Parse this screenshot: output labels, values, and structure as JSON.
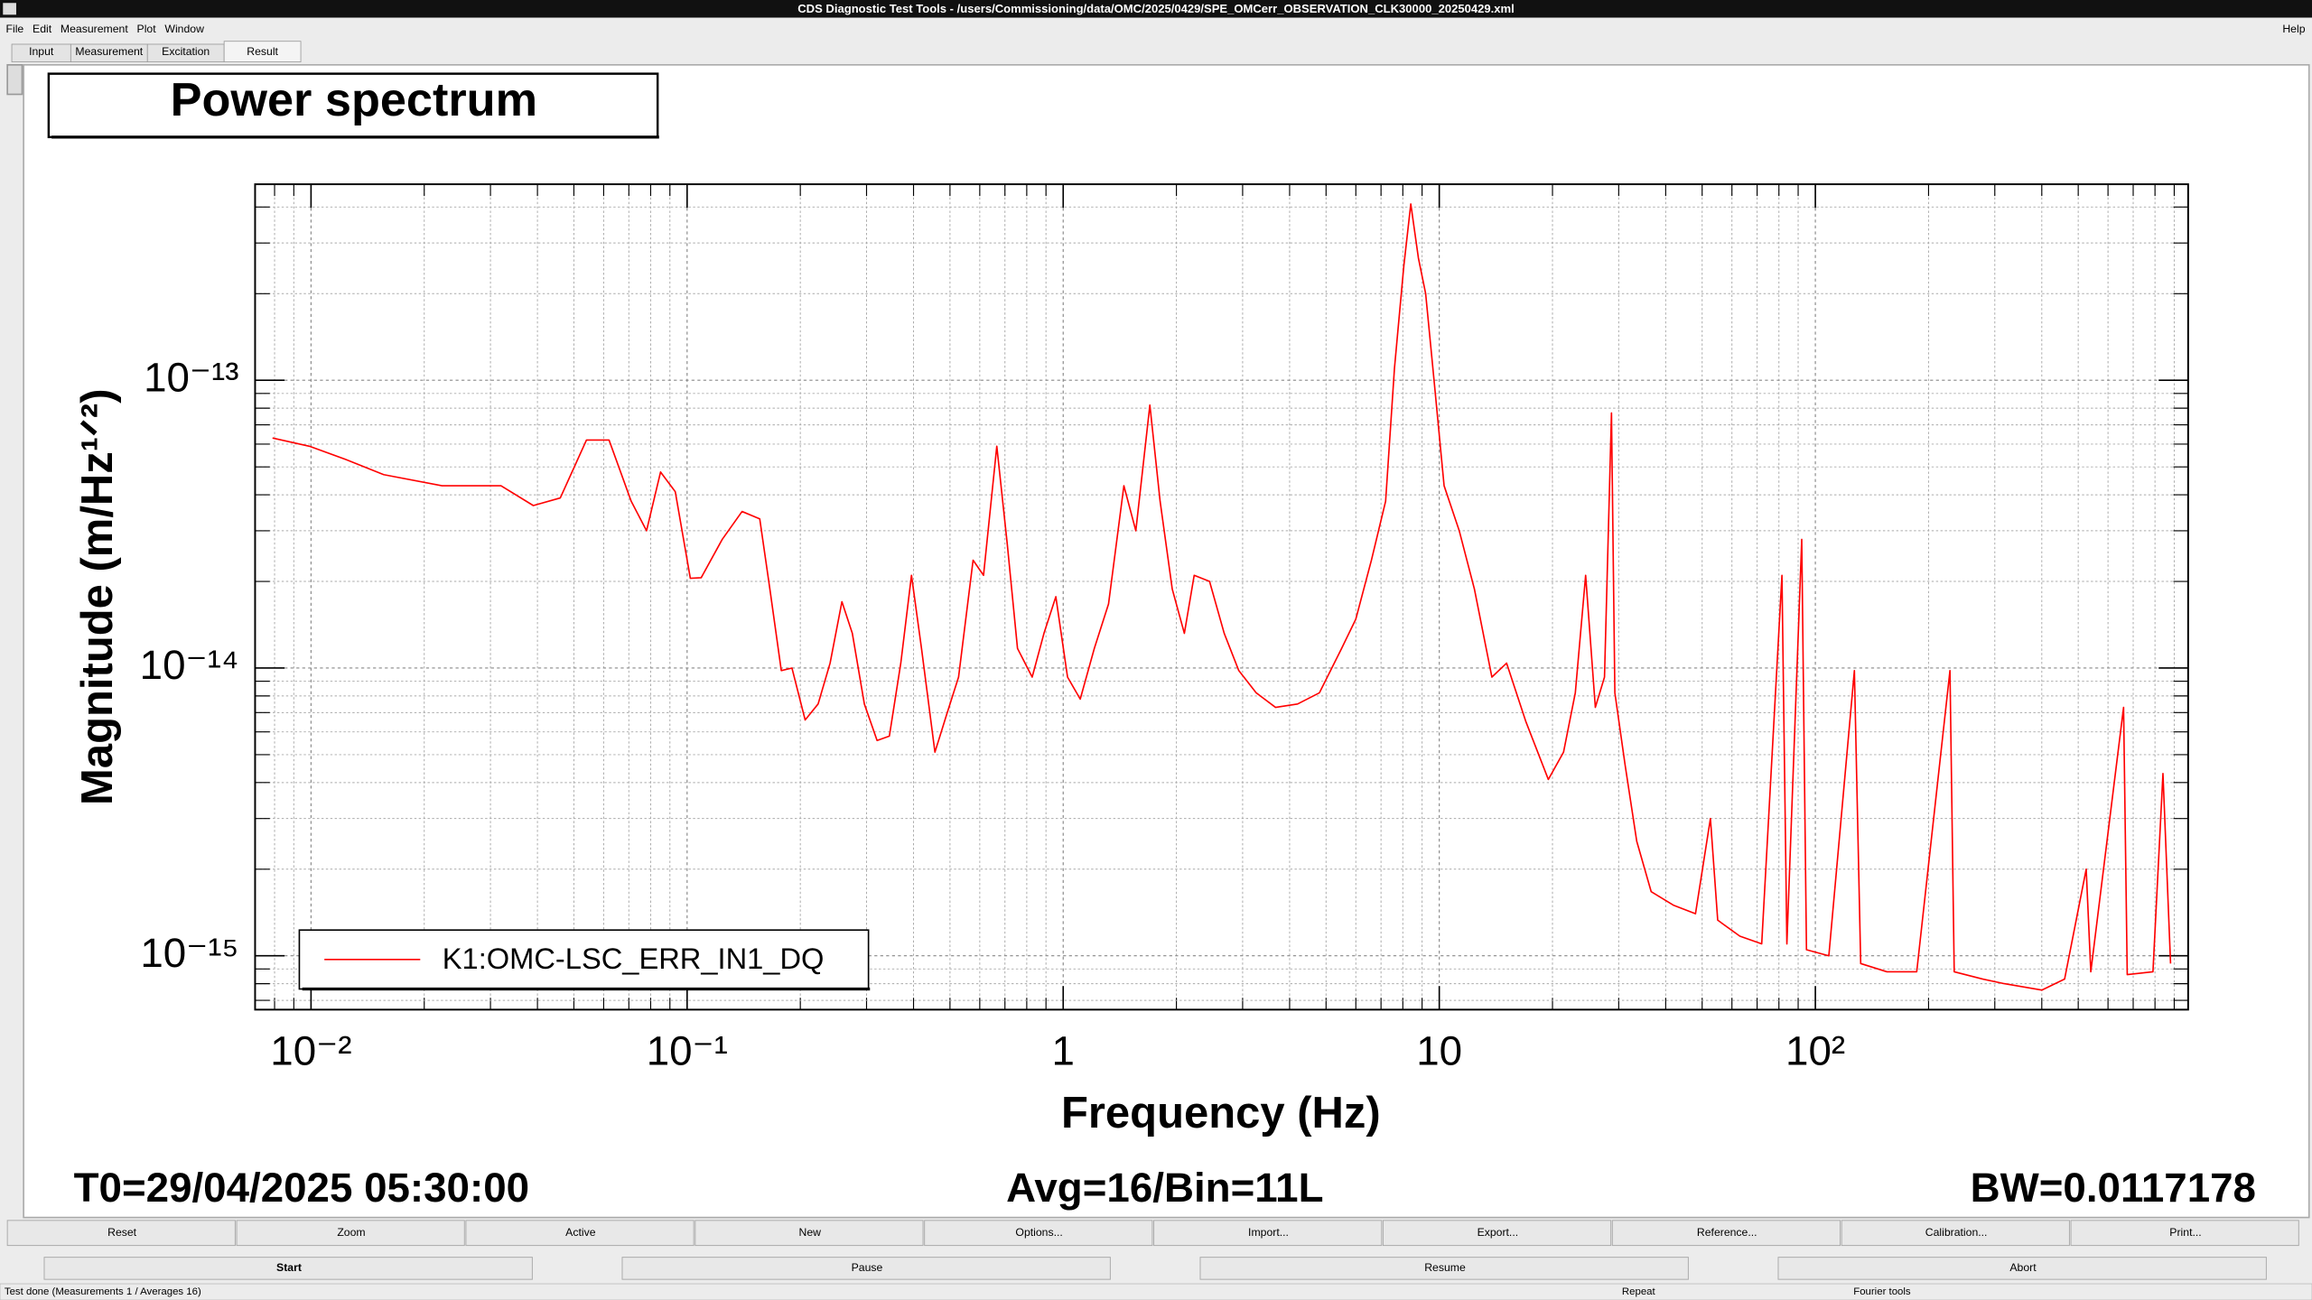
{
  "window_title": "CDS Diagnostic Test Tools - /users/Commissioning/data/OMC/2025/0429/SPE_OMCerr_OBSERVATION_CLK30000_20250429.xml",
  "menu": [
    "File",
    "Edit",
    "Measurement",
    "Plot",
    "Window"
  ],
  "help": "Help",
  "tabs": [
    "Input",
    "Measurement",
    "Excitation",
    "Result"
  ],
  "plot_title": "Power spectrum",
  "chart_data": {
    "type": "line",
    "xlabel": "Frequency (Hz)",
    "ylabel": "Magnitude (m/Hz¹ᐟ²)",
    "xscale": "log",
    "yscale": "log",
    "grid": true,
    "minor_grid": true,
    "legend": "lower left",
    "xlim": [
      0.0071,
      980
    ],
    "ylim": [
      6.5e-16,
      4.8e-13
    ],
    "xticks": [
      {
        "value": 0.01,
        "label": "10⁻²"
      },
      {
        "value": 0.1,
        "label": "10⁻¹"
      },
      1,
      10,
      {
        "value": 100,
        "label": "10²"
      }
    ],
    "yticks": [
      {
        "value": 1e-15,
        "label": "10⁻¹⁵"
      },
      {
        "value": 1e-14,
        "label": "10⁻¹⁴"
      },
      {
        "value": 1e-13,
        "label": "10⁻¹³"
      }
    ],
    "x": [
      0.0079,
      0.0099,
      0.0124,
      0.0156,
      0.0223,
      0.032,
      0.039,
      0.046,
      0.054,
      0.062,
      0.071,
      0.078,
      0.085,
      0.093,
      0.102,
      0.109,
      0.124,
      0.14,
      0.156,
      0.166,
      0.178,
      0.19,
      0.206,
      0.223,
      0.24,
      0.258,
      0.275,
      0.296,
      0.32,
      0.345,
      0.37,
      0.395,
      0.42,
      0.456,
      0.49,
      0.527,
      0.576,
      0.614,
      0.666,
      0.71,
      0.756,
      0.827,
      0.889,
      0.956,
      1.027,
      1.11,
      1.21,
      1.32,
      1.45,
      1.56,
      1.7,
      1.81,
      1.95,
      2.1,
      2.23,
      2.45,
      2.68,
      2.93,
      3.26,
      3.67,
      4.2,
      4.8,
      5.5,
      6.0,
      6.6,
      7.2,
      7.6,
      8.05,
      8.4,
      8.8,
      9.2,
      9.7,
      10.3,
      11.3,
      12.4,
      13.8,
      15.1,
      17.0,
      19.5,
      21.4,
      23.0,
      24.5,
      26.0,
      27.5,
      28.7,
      29.3,
      31.2,
      33.5,
      36.6,
      41.9,
      48.0,
      52.6,
      55,
      63,
      72,
      81.5,
      84,
      92,
      94.7,
      108.6,
      127,
      132,
      155,
      186,
      228,
      234,
      279,
      318,
      400,
      460,
      525,
      540,
      660,
      675,
      790,
      840,
      880
    ],
    "series": [
      {
        "name": "K1:OMC-LSC_ERR_IN1_DQ",
        "color": "#ff0000",
        "values": [
          6.3e-14,
          5.9e-14,
          5.3e-14,
          4.7e-14,
          4.3e-14,
          4.3e-14,
          3.67e-14,
          3.9e-14,
          6.2e-14,
          6.2e-14,
          3.8e-14,
          3e-14,
          4.8e-14,
          4.1e-14,
          2.05e-14,
          2.06e-14,
          2.8e-14,
          3.5e-14,
          3.3e-14,
          1.88e-14,
          9.8e-15,
          1e-14,
          6.6e-15,
          7.5e-15,
          1.04e-14,
          1.7e-14,
          1.32e-14,
          7.5e-15,
          5.6e-15,
          5.8e-15,
          1.04e-14,
          2.1e-14,
          1.17e-14,
          5.1e-15,
          6.9e-15,
          9.3e-15,
          2.37e-14,
          2.1e-14,
          5.9e-14,
          2.7e-14,
          1.17e-14,
          9.3e-15,
          1.32e-14,
          1.77e-14,
          9.3e-15,
          7.8e-15,
          1.17e-14,
          1.67e-14,
          4.3e-14,
          3e-14,
          8.2e-14,
          3.8e-14,
          1.88e-14,
          1.32e-14,
          2.1e-14,
          2e-14,
          1.32e-14,
          9.8e-15,
          8.2e-15,
          7.3e-15,
          7.5e-15,
          8.2e-15,
          1.17e-14,
          1.48e-14,
          2.37e-14,
          3.8e-14,
          1.1e-13,
          2.5e-13,
          4.1e-13,
          2.66e-13,
          2e-13,
          9.8e-14,
          4.3e-14,
          3e-14,
          1.88e-14,
          9.3e-15,
          1.04e-14,
          6.5e-15,
          4.1e-15,
          5.1e-15,
          8.2e-15,
          2.1e-14,
          7.3e-15,
          9.3e-15,
          7.7e-14,
          8.2e-15,
          4.6e-15,
          2.5e-15,
          1.67e-15,
          1.5e-15,
          1.4e-15,
          3e-15,
          1.33e-15,
          1.17e-15,
          1.1e-15,
          2.1e-14,
          1.1e-15,
          2.8e-14,
          1.05e-15,
          1e-15,
          9.8e-15,
          9.4e-16,
          8.8e-16,
          8.8e-16,
          9.8e-15,
          8.8e-16,
          8.3e-16,
          8e-16,
          7.6e-16,
          8.3e-16,
          2e-15,
          8.8e-16,
          7.3e-15,
          8.6e-16,
          8.8e-16,
          4.3e-15,
          9.4e-16
        ]
      }
    ]
  },
  "info": {
    "t0": "T0=29/04/2025 05:30:00",
    "avg": "Avg=16/Bin=11L",
    "bw": "BW=0.0117178"
  },
  "buttons": [
    "Reset",
    "Zoom",
    "Active",
    "New",
    "Options...",
    "Import...",
    "Export...",
    "Reference...",
    "Calibration...",
    "Print..."
  ],
  "controls": [
    "Start",
    "Pause",
    "Resume",
    "Abort"
  ],
  "status": [
    "Test done (Measurements 1 / Averages 16)",
    "Repeat",
    "Fourier tools"
  ]
}
